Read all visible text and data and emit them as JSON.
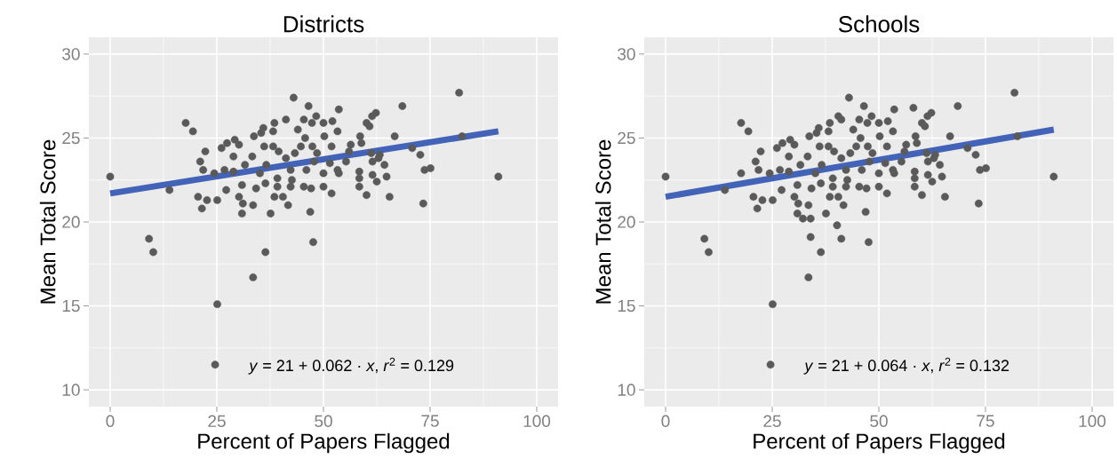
{
  "chart_data": [
    {
      "type": "scatter",
      "title": "Districts",
      "xlabel": "Percent of Papers Flagged",
      "ylabel": "Mean Total Score",
      "xlim": [
        -5,
        105
      ],
      "ylim": [
        9,
        31
      ],
      "xticks": [
        0,
        25,
        50,
        75,
        100
      ],
      "yticks": [
        10,
        15,
        20,
        25,
        30
      ],
      "grid": true,
      "marker": "circle",
      "annotations": [
        "*y* = 21 + 0.062 · *x*,  *r*$^{2}$ = 0.129"
      ],
      "series": [
        {
          "type": "scatter",
          "color": "#5a5a5a",
          "x": [
            0,
            13.9,
            17.7,
            19.4,
            9.1,
            10.1,
            25.1,
            24.6,
            33.5,
            36.4,
            47.6,
            43.0,
            46.5,
            53.6,
            68.5,
            81.8,
            82.5,
            91.0,
            73.4,
            65.5,
            66.7,
            70.8,
            72.7,
            73.7,
            75.1,
            62.3,
            61.4,
            60.1,
            60.8,
            58.6,
            58.9,
            60.1,
            58.4,
            58.4,
            58.4,
            62.5,
            61.5,
            64.8,
            64.3,
            62.9,
            61.2,
            61.5,
            63.2,
            56.4,
            56.0,
            55.3,
            53.6,
            53.3,
            51.9,
            50.0,
            50.0,
            50.2,
            51.9,
            51.5,
            53.3,
            52.1,
            50.0,
            48.3,
            47.3,
            45.4,
            41.2,
            38.5,
            35.9,
            38.2,
            33.7,
            29.2,
            27.4,
            26.1,
            22.3,
            21.1,
            21.8,
            24.4,
            26.8,
            28.9,
            28.9,
            30.2,
            33.3,
            31.6,
            27.2,
            30.9,
            30.2,
            31.1,
            30.9,
            33.5,
            34.2,
            35.1,
            36.4,
            36.6,
            38.5,
            37.6,
            40.5,
            41.7,
            39.2,
            39.2,
            38.2,
            39.5,
            41.2,
            42.3,
            42.6,
            42.3,
            45.4,
            47.1,
            46.9,
            46.0,
            47.8,
            47.4,
            48.5,
            45.7,
            44.0,
            44.7,
            43.3,
            20.6,
            22.7,
            21.5,
            25.1,
            35.4,
            36.1
          ],
          "values": [
            22.7,
            21.9,
            25.9,
            25.4,
            19.0,
            18.2,
            15.1,
            11.5,
            16.7,
            18.2,
            18.8,
            27.4,
            26.9,
            26.7,
            26.9,
            27.7,
            25.1,
            22.7,
            21.1,
            21.5,
            25.1,
            24.4,
            24.0,
            23.1,
            23.2,
            26.5,
            26.3,
            25.9,
            25.7,
            25.1,
            24.7,
            21.6,
            22.1,
            22.6,
            23.0,
            22.4,
            22.8,
            22.7,
            23.4,
            23.8,
            24.1,
            23.6,
            24.0,
            24.6,
            24.2,
            23.6,
            22.9,
            23.1,
            21.7,
            22.1,
            22.9,
            25.1,
            24.5,
            23.5,
            25.4,
            26.0,
            25.9,
            26.3,
            25.9,
            26.1,
            26.1,
            25.9,
            25.6,
            25.4,
            25.1,
            24.9,
            24.7,
            24.4,
            24.2,
            23.6,
            23.1,
            22.9,
            23.1,
            23.0,
            23.9,
            24.6,
            23.9,
            23.4,
            21.9,
            22.2,
            21.5,
            21.1,
            20.5,
            21.0,
            22.0,
            22.9,
            22.3,
            23.4,
            21.5,
            20.5,
            21.5,
            21.0,
            22.1,
            22.6,
            24.5,
            24.2,
            23.8,
            23.1,
            22.5,
            22.1,
            22.1,
            22.0,
            20.6,
            23.1,
            23.6,
            24.5,
            24.1,
            25.0,
            25.5,
            24.5,
            24.1,
            21.5,
            21.3,
            20.8,
            21.3,
            25.3,
            24.5
          ]
        },
        {
          "type": "line",
          "marker": "none",
          "color": "#4363b8",
          "x": [
            0,
            91
          ],
          "values": [
            21.7,
            25.4
          ]
        }
      ]
    },
    {
      "type": "scatter",
      "title": "Schools",
      "xlabel": "Percent of Papers Flagged",
      "ylabel": "Mean Total Score",
      "xlim": [
        -5,
        105
      ],
      "ylim": [
        9,
        31
      ],
      "xticks": [
        0,
        25,
        50,
        75,
        100
      ],
      "yticks": [
        10,
        15,
        20,
        25,
        30
      ],
      "grid": true,
      "marker": "circle",
      "annotations": [
        "*y* = 21 + 0.064 · *x*,  *r*$^{2}$ = 0.132"
      ],
      "series": [
        {
          "type": "scatter",
          "color": "#5a5a5a",
          "x": [
            0,
            13.9,
            17.7,
            19.4,
            9.1,
            10.1,
            25.1,
            24.6,
            33.5,
            36.4,
            47.6,
            43.0,
            46.5,
            53.6,
            68.5,
            81.8,
            82.5,
            91.0,
            73.4,
            65.5,
            66.7,
            70.8,
            72.7,
            73.7,
            75.1,
            62.3,
            61.4,
            60.1,
            60.8,
            58.6,
            58.9,
            60.1,
            58.4,
            58.4,
            58.4,
            62.5,
            61.5,
            64.8,
            64.3,
            62.9,
            61.2,
            61.5,
            63.2,
            56.4,
            56.0,
            55.3,
            53.6,
            53.3,
            51.9,
            50.0,
            50.0,
            50.2,
            51.9,
            51.5,
            53.3,
            52.1,
            50.0,
            48.3,
            47.3,
            45.4,
            41.2,
            38.5,
            35.9,
            38.2,
            33.7,
            29.2,
            27.4,
            26.1,
            22.3,
            21.1,
            21.8,
            24.4,
            26.8,
            28.9,
            28.9,
            30.2,
            33.3,
            31.6,
            27.2,
            30.9,
            30.2,
            31.1,
            30.9,
            33.5,
            34.2,
            35.1,
            36.4,
            36.6,
            38.5,
            37.6,
            40.5,
            41.7,
            39.2,
            39.2,
            38.2,
            39.5,
            41.2,
            42.3,
            42.6,
            42.3,
            45.4,
            47.1,
            46.9,
            46.0,
            47.8,
            47.4,
            48.5,
            45.7,
            44.0,
            44.7,
            43.3,
            20.6,
            22.7,
            21.5,
            25.1,
            35.4,
            36.1,
            17.7,
            58.1,
            34.0,
            40.2,
            41.2,
            32.2,
            34.0,
            40.5
          ],
          "values": [
            22.7,
            21.9,
            25.9,
            25.4,
            19.0,
            18.2,
            15.1,
            11.5,
            16.7,
            18.2,
            18.8,
            27.4,
            26.9,
            26.7,
            26.9,
            27.7,
            25.1,
            22.7,
            21.1,
            21.5,
            25.1,
            24.4,
            24.0,
            23.1,
            23.2,
            26.5,
            26.3,
            25.9,
            25.7,
            25.1,
            24.7,
            21.6,
            22.1,
            22.6,
            23.0,
            22.4,
            22.8,
            22.7,
            23.4,
            23.8,
            24.1,
            23.6,
            24.0,
            24.6,
            24.2,
            23.6,
            22.9,
            23.1,
            21.7,
            22.1,
            22.9,
            25.1,
            24.5,
            23.5,
            25.4,
            26.0,
            25.9,
            26.3,
            25.9,
            26.1,
            26.1,
            25.9,
            25.6,
            25.4,
            25.1,
            24.9,
            24.7,
            24.4,
            24.2,
            23.6,
            23.1,
            22.9,
            23.1,
            23.0,
            23.9,
            24.6,
            23.9,
            23.4,
            21.9,
            22.2,
            21.5,
            21.1,
            20.5,
            21.0,
            22.0,
            22.9,
            22.3,
            23.4,
            21.5,
            20.5,
            21.5,
            21.0,
            22.1,
            22.6,
            24.5,
            24.2,
            23.8,
            23.1,
            22.5,
            22.1,
            22.1,
            22.0,
            20.6,
            23.1,
            23.6,
            24.5,
            24.1,
            25.0,
            25.5,
            24.5,
            24.1,
            21.5,
            21.3,
            20.8,
            21.3,
            25.3,
            24.5,
            22.9,
            26.8,
            19.1,
            19.8,
            19.0,
            20.2,
            20.2,
            26.3
          ]
        },
        {
          "type": "line",
          "marker": "none",
          "color": "#4363b8",
          "x": [
            0,
            91
          ],
          "values": [
            21.5,
            25.5
          ]
        }
      ]
    }
  ]
}
